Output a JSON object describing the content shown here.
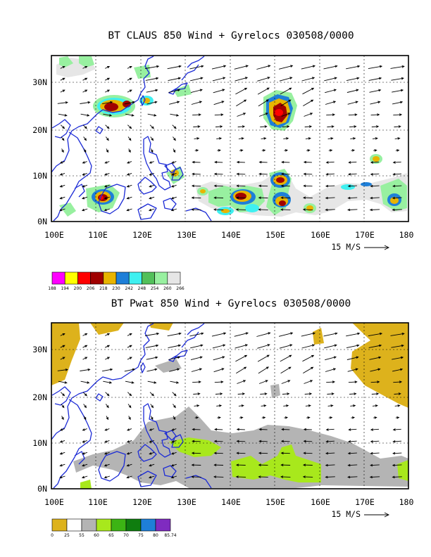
{
  "chart_data": [
    {
      "type": "heatmap",
      "title": "BT CLAUS 850 Wind + Gyrelocs 030508/0000",
      "x_ticks": [
        "100E",
        "110E",
        "120E",
        "130E",
        "140E",
        "150E",
        "160E",
        "170E",
        "180"
      ],
      "y_ticks": [
        "0N",
        "10N",
        "20N",
        "30N"
      ],
      "xlim": [
        100,
        180
      ],
      "ylim": [
        0,
        35
      ],
      "grid": true,
      "vector_scale_label": "15 M/S",
      "colorbar": {
        "labels": [
          "188",
          "194",
          "200",
          "206",
          "218",
          "230",
          "242",
          "248",
          "254",
          "260",
          "266"
        ],
        "colors": [
          "#ff00ff",
          "#ffff00",
          "#ff0000",
          "#a00000",
          "#e8b400",
          "#1e7fd8",
          "#3ff0f0",
          "#52c05a",
          "#98f0a0",
          "#e6e6e6"
        ]
      },
      "cloud_areas": [
        {
          "lon": 114,
          "lat": 25.5,
          "level": "cold-core"
        },
        {
          "lon": 119,
          "lat": 26,
          "level": "medium"
        },
        {
          "lon": 150,
          "lat": 24,
          "level": "cold-core"
        },
        {
          "lon": 151.5,
          "lat": 9,
          "level": "cold-core"
        },
        {
          "lon": 145,
          "lat": 5.5,
          "level": "cold-core"
        },
        {
          "lon": 151,
          "lat": 6,
          "level": "cold-core"
        },
        {
          "lon": 112,
          "lat": 5.5,
          "level": "cold-core"
        },
        {
          "lon": 126,
          "lat": 10,
          "level": "medium"
        },
        {
          "lon": 157.5,
          "lat": 3,
          "level": "medium"
        },
        {
          "lon": 175.5,
          "lat": 5,
          "level": "medium"
        },
        {
          "lon": 172.5,
          "lat": 14,
          "level": "medium"
        }
      ]
    },
    {
      "type": "heatmap",
      "title": "BT Pwat 850 Wind + Gyrelocs 030508/0000",
      "x_ticks": [
        "100E",
        "110E",
        "120E",
        "130E",
        "140E",
        "150E",
        "160E",
        "170E",
        "180"
      ],
      "y_ticks": [
        "0N",
        "10N",
        "20N",
        "30N"
      ],
      "xlim": [
        100,
        180
      ],
      "ylim": [
        0,
        35
      ],
      "grid": true,
      "vector_scale_label": "15 M/S",
      "colorbar": {
        "labels": [
          "0",
          "25",
          "55",
          "60",
          "65",
          "70",
          "75",
          "80",
          "85.74"
        ],
        "colors": [
          "#ddb21c",
          "#ffffff",
          "#b4b4b4",
          "#a8e81c",
          "#3cb414",
          "#0f7d0f",
          "#1e7fd8",
          "#7f2bc0"
        ]
      },
      "moisture_areas": [
        {
          "lon": 102,
          "lat": 30,
          "level": "0-25"
        },
        {
          "lon": 173,
          "lat": 29,
          "level": "0-25"
        },
        {
          "lon": 125,
          "lat": 3,
          "level": "55-60"
        },
        {
          "lon": 150,
          "lat": 7,
          "level": "55-60"
        },
        {
          "lon": 130,
          "lat": 9,
          "level": "60-65"
        },
        {
          "lon": 152,
          "lat": 5,
          "level": "60-65"
        }
      ]
    }
  ]
}
